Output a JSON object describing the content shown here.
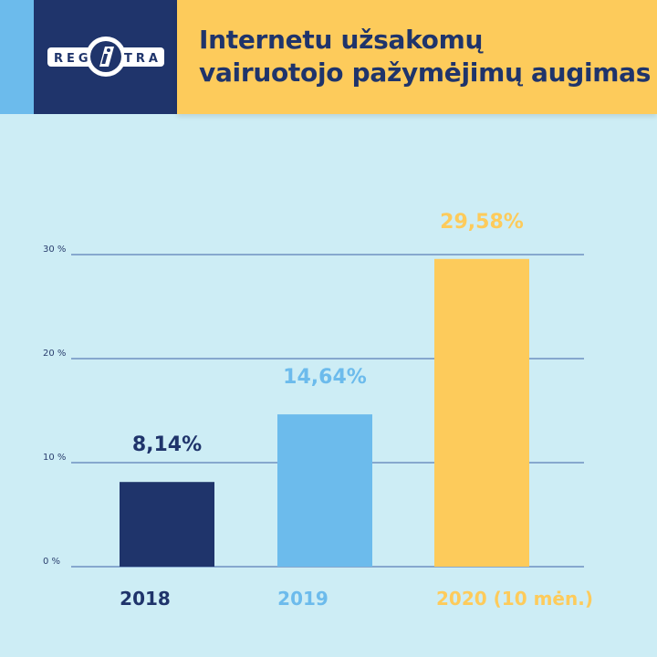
{
  "header": {
    "logo_text": "REGITRA",
    "title_line1": "Internetu užsakomų",
    "title_line2": "vairuotojo pažymėjimų augimas"
  },
  "colors": {
    "navy": "#1f346b",
    "blue": "#6cbbec",
    "yellow": "#fdcb5b",
    "background": "#cdedf5",
    "grid": "#3f64a8"
  },
  "chart_data": {
    "type": "bar",
    "title": "Internetu užsakomų vairuotojo pažymėjimų augimas",
    "categories": [
      "2018",
      "2019",
      "2020 (10 mėn.)"
    ],
    "values": [
      8.14,
      14.64,
      29.58
    ],
    "value_labels": [
      "8,14%",
      "14,64%",
      "29,58%"
    ],
    "bar_colors": [
      "#1f346b",
      "#6cbbec",
      "#fdcb5b"
    ],
    "ylim": [
      0,
      30
    ],
    "yticks": [
      0,
      10,
      20,
      30
    ],
    "ytick_labels": [
      "0 %",
      "10 %",
      "20 %",
      "30 %"
    ],
    "xlabel": "",
    "ylabel": "",
    "grid": true
  }
}
